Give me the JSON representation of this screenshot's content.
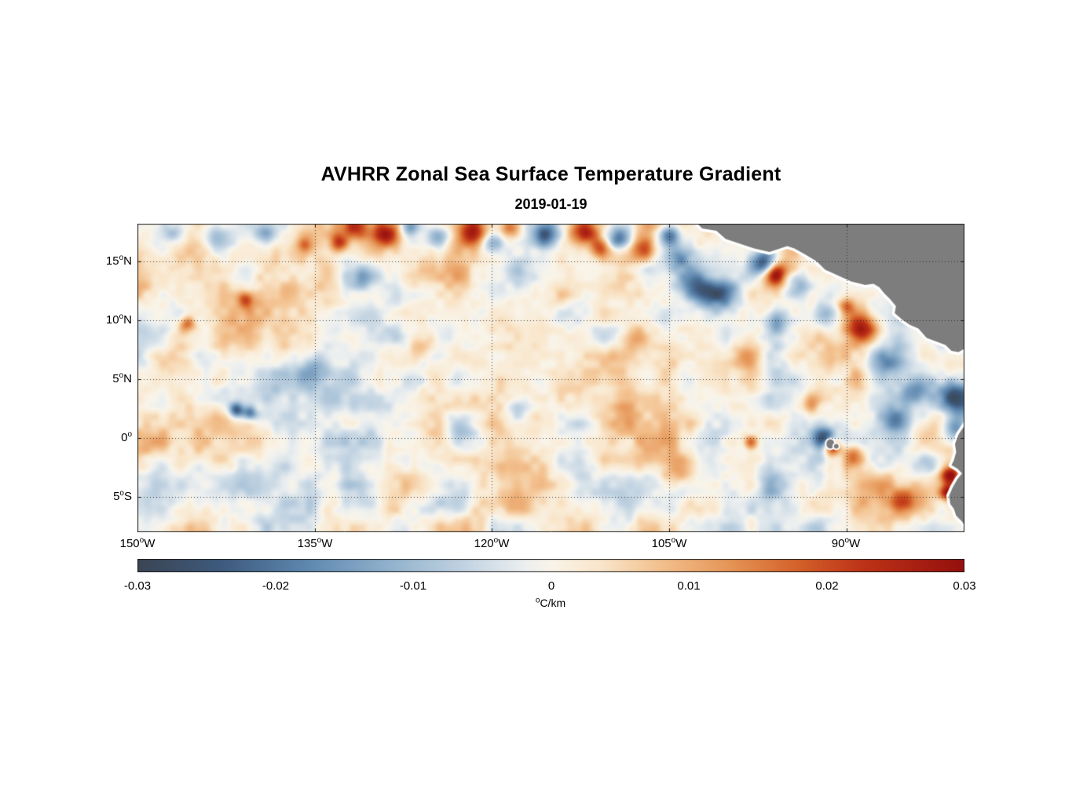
{
  "chart": {
    "title": "AVHRR Zonal Sea Surface Temperature Gradient",
    "subtitle": "2019-01-19",
    "x_ticks": [
      {
        "num": "150",
        "deg": "o",
        "suf": "W"
      },
      {
        "num": "135",
        "deg": "o",
        "suf": "W"
      },
      {
        "num": "120",
        "deg": "o",
        "suf": "W"
      },
      {
        "num": "105",
        "deg": "o",
        "suf": "W"
      },
      {
        "num": "90",
        "deg": "o",
        "suf": "W"
      }
    ],
    "y_ticks": [
      {
        "num": "15",
        "deg": "o",
        "suf": "N"
      },
      {
        "num": "10",
        "deg": "o",
        "suf": "N"
      },
      {
        "num": "5",
        "deg": "o",
        "suf": "N"
      },
      {
        "num": "0",
        "deg": "o",
        "suf": ""
      },
      {
        "num": "5",
        "deg": "o",
        "suf": "S"
      }
    ],
    "colorbar": {
      "ticks": [
        "-0.03",
        "-0.02",
        "-0.01",
        "0",
        "0.01",
        "0.02",
        "0.03"
      ],
      "unit_deg": "o",
      "unit_text": "C/km"
    }
  },
  "chart_data": {
    "type": "heatmap",
    "title": "AVHRR Zonal Sea Surface Temperature Gradient",
    "date": "2019-01-19",
    "units": "°C/km",
    "lon_range_w": [
      150,
      80
    ],
    "lat_range": [
      18.2,
      -8.0
    ],
    "x_tick_lons_w": [
      150,
      135,
      120,
      105,
      90
    ],
    "y_tick_lats": [
      15,
      10,
      5,
      0,
      -5
    ],
    "value_range": [
      -0.03,
      0.03
    ],
    "grid_style": "dotted",
    "land_color": "#7d7d7d",
    "coast_halo_color": "#ffffff",
    "colormap_stops": [
      [
        0.0,
        "#3b4654"
      ],
      [
        0.1,
        "#3e5a7d"
      ],
      [
        0.2,
        "#5d86ae"
      ],
      [
        0.3,
        "#8fb0cc"
      ],
      [
        0.4,
        "#c4d5e3"
      ],
      [
        0.47,
        "#edf0f0"
      ],
      [
        0.5,
        "#f9f4e9"
      ],
      [
        0.56,
        "#f9e6cb"
      ],
      [
        0.63,
        "#f3c290"
      ],
      [
        0.72,
        "#e59354"
      ],
      [
        0.8,
        "#d4612a"
      ],
      [
        0.88,
        "#bd3217"
      ],
      [
        1.0,
        "#95100e"
      ]
    ],
    "features": [
      [
        147.0,
        17.6,
        -0.012,
        0.9
      ],
      [
        143.5,
        17.0,
        -0.01,
        0.8
      ],
      [
        139.2,
        17.5,
        -0.013,
        0.7
      ],
      [
        135.8,
        16.4,
        0.012,
        0.5
      ],
      [
        133.0,
        16.6,
        0.018,
        0.5
      ],
      [
        131.8,
        17.8,
        0.02,
        0.7
      ],
      [
        129.0,
        17.3,
        0.022,
        0.8
      ],
      [
        127.0,
        17.9,
        -0.016,
        0.6
      ],
      [
        124.5,
        17.0,
        -0.014,
        0.7
      ],
      [
        121.7,
        17.5,
        0.022,
        0.8
      ],
      [
        120.0,
        16.6,
        -0.016,
        0.6
      ],
      [
        118.5,
        17.8,
        0.016,
        0.6
      ],
      [
        115.5,
        17.3,
        -0.018,
        0.8
      ],
      [
        112.3,
        17.6,
        0.028,
        0.9
      ],
      [
        110.8,
        16.1,
        0.018,
        0.6
      ],
      [
        109.3,
        17.0,
        -0.022,
        0.7
      ],
      [
        107.3,
        16.0,
        0.018,
        0.7
      ],
      [
        105.0,
        17.2,
        -0.02,
        0.6
      ],
      [
        104.2,
        15.4,
        -0.014,
        0.8
      ],
      [
        102.8,
        12.8,
        -0.02,
        1.0
      ],
      [
        100.8,
        12.3,
        -0.016,
        0.9
      ],
      [
        96.9,
        14.9,
        -0.03,
        0.75
      ],
      [
        96.1,
        14.0,
        0.03,
        0.7
      ],
      [
        94.2,
        12.9,
        -0.016,
        0.9
      ],
      [
        91.8,
        10.4,
        -0.018,
        0.9
      ],
      [
        90.0,
        11.2,
        0.014,
        0.5
      ],
      [
        88.7,
        9.2,
        0.026,
        0.9
      ],
      [
        96.0,
        10.0,
        -0.014,
        0.7
      ],
      [
        98.5,
        7.0,
        0.012,
        0.9
      ],
      [
        93.0,
        3.0,
        0.014,
        0.7
      ],
      [
        86.5,
        6.5,
        -0.012,
        0.9
      ],
      [
        84.0,
        4.2,
        -0.016,
        1.0
      ],
      [
        80.8,
        3.4,
        -0.03,
        1.1
      ],
      [
        80.9,
        0.8,
        -0.018,
        0.7
      ],
      [
        92.0,
        -0.1,
        -0.026,
        0.7
      ],
      [
        91.25,
        -0.75,
        0.03,
        0.5
      ],
      [
        89.5,
        -1.6,
        0.016,
        0.6
      ],
      [
        98.1,
        -0.3,
        0.022,
        0.45
      ],
      [
        81.2,
        -3.1,
        0.028,
        0.55
      ],
      [
        81.4,
        -4.6,
        0.024,
        0.5
      ],
      [
        83.3,
        -2.2,
        -0.014,
        0.9
      ],
      [
        85.3,
        -5.4,
        0.014,
        0.9
      ],
      [
        141.6,
        2.4,
        -0.024,
        0.45
      ],
      [
        140.5,
        2.1,
        -0.02,
        0.4
      ],
      [
        145.8,
        9.7,
        0.018,
        0.5
      ],
      [
        140.9,
        11.7,
        0.018,
        0.5
      ],
      [
        122.5,
        0.5,
        -0.012,
        1.0
      ],
      [
        118.0,
        2.0,
        -0.01,
        0.9
      ],
      [
        126.0,
        8.0,
        0.01,
        1.0
      ],
      [
        135.0,
        6.0,
        -0.01,
        1.0
      ],
      [
        108.0,
        8.5,
        0.012,
        0.9
      ],
      [
        131.0,
        13.5,
        -0.01,
        0.8
      ],
      [
        96.5,
        -4.0,
        -0.01,
        0.9
      ],
      [
        104.0,
        -3.0,
        0.01,
        0.9
      ],
      [
        89.0,
        5.0,
        0.012,
        0.7
      ],
      [
        86.0,
        1.5,
        -0.012,
        0.8
      ]
    ],
    "land_polygons": [
      [
        [
          103.2,
          18.8
        ],
        [
          102.2,
          17.8
        ],
        [
          101.0,
          17.6
        ],
        [
          100.2,
          16.9
        ],
        [
          99.0,
          16.5
        ],
        [
          97.8,
          16.1
        ],
        [
          96.5,
          15.8
        ],
        [
          95.6,
          16.1
        ],
        [
          95.0,
          16.3
        ],
        [
          94.4,
          16.1
        ],
        [
          93.5,
          15.6
        ],
        [
          92.5,
          15.0
        ],
        [
          91.8,
          14.3
        ],
        [
          90.7,
          13.8
        ],
        [
          89.6,
          13.3
        ],
        [
          88.4,
          13.0
        ],
        [
          87.7,
          13.1
        ],
        [
          87.2,
          12.8
        ],
        [
          86.8,
          12.3
        ],
        [
          86.3,
          11.8
        ],
        [
          85.8,
          11.2
        ],
        [
          85.9,
          10.6
        ],
        [
          85.2,
          10.0
        ],
        [
          84.6,
          9.6
        ],
        [
          83.9,
          9.3
        ],
        [
          83.2,
          8.5
        ],
        [
          82.4,
          8.2
        ],
        [
          81.6,
          7.9
        ],
        [
          81.1,
          7.4
        ],
        [
          80.5,
          7.3
        ],
        [
          79.8,
          7.7
        ],
        [
          78.0,
          7.6
        ],
        [
          78.0,
          19.0
        ]
      ],
      [
        [
          79.5,
          1.8
        ],
        [
          80.1,
          0.9
        ],
        [
          80.5,
          0.3
        ],
        [
          80.8,
          -0.5
        ],
        [
          80.7,
          -1.2
        ],
        [
          80.9,
          -1.9
        ],
        [
          81.1,
          -2.3
        ],
        [
          80.6,
          -2.6
        ],
        [
          80.2,
          -3.0
        ],
        [
          80.6,
          -3.5
        ],
        [
          81.0,
          -4.2
        ],
        [
          81.3,
          -4.9
        ],
        [
          81.2,
          -5.6
        ],
        [
          80.9,
          -6.0
        ],
        [
          80.7,
          -6.6
        ],
        [
          80.2,
          -7.1
        ],
        [
          79.8,
          -7.7
        ],
        [
          79.4,
          -8.5
        ],
        [
          78.0,
          -8.5
        ],
        [
          78.0,
          2.0
        ]
      ]
    ],
    "islands": [
      [
        91.35,
        -0.5,
        5,
        6
      ],
      [
        90.85,
        -0.7,
        3,
        3
      ]
    ]
  }
}
